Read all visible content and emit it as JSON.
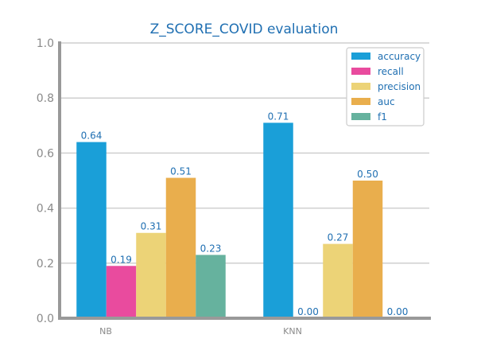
{
  "chart_data": {
    "type": "bar",
    "title": "Z_SCORE_COVID evaluation",
    "xlabel": "",
    "ylabel": "",
    "categories": [
      "NB",
      "KNN"
    ],
    "ylim": [
      0,
      1.0
    ],
    "yticks": [
      "0.0",
      "0.2",
      "0.4",
      "0.6",
      "0.8",
      "1.0"
    ],
    "grid": true,
    "legend_position": "top-right",
    "series": [
      {
        "name": "accuracy",
        "color": "#1a9fd8",
        "values": [
          0.64,
          0.71
        ],
        "labels": [
          "0.64",
          "0.71"
        ]
      },
      {
        "name": "recall",
        "color": "#e94b9e",
        "values": [
          0.19,
          0.0
        ],
        "labels": [
          "0.19",
          "0.00"
        ]
      },
      {
        "name": "precision",
        "color": "#ecd377",
        "values": [
          0.31,
          0.27
        ],
        "labels": [
          "0.31",
          "0.27"
        ]
      },
      {
        "name": "auc",
        "color": "#e9ae4d",
        "values": [
          0.51,
          0.5
        ],
        "labels": [
          "0.51",
          "0.50"
        ]
      },
      {
        "name": "f1",
        "color": "#66b29e",
        "values": [
          0.23,
          0.0
        ],
        "labels": [
          "0.23",
          "0.00"
        ]
      }
    ]
  }
}
